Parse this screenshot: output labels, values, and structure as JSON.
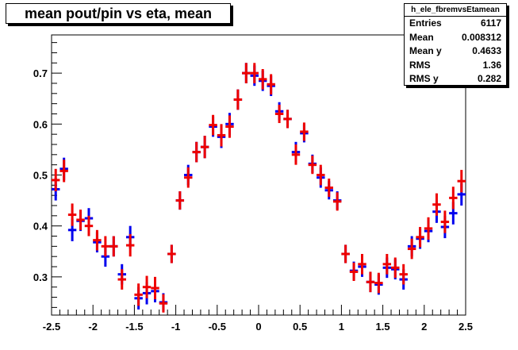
{
  "chart_data": {
    "type": "scatter",
    "title": "mean pout/pin vs eta, mean",
    "xlabel": "",
    "ylabel": "",
    "xlim": [
      -2.5,
      2.5
    ],
    "ylim": [
      0.225,
      0.775
    ],
    "x_ticks": [
      -2.5,
      -2,
      -1.5,
      -1,
      -0.5,
      0,
      0.5,
      1,
      1.5,
      2,
      2.5
    ],
    "x_tick_labels": [
      "-2.5",
      "-2",
      "-1.5",
      "-1",
      "-0.5",
      "0",
      "0.5",
      "1",
      "1.5",
      "2",
      "2.5"
    ],
    "y_ticks": [
      0.3,
      0.4,
      0.5,
      0.6,
      0.7
    ],
    "y_tick_labels": [
      "0.3",
      "0.4",
      "0.5",
      "0.6",
      "0.7"
    ],
    "grid": false,
    "series": [
      {
        "color": "#0000ee",
        "x": [
          -2.45,
          -2.35,
          -2.25,
          -2.15,
          -2.05,
          -1.95,
          -1.85,
          -1.75,
          -1.65,
          -1.55,
          -1.45,
          -1.35,
          -1.25,
          -1.15,
          -1.05,
          -0.95,
          -0.85,
          -0.75,
          -0.65,
          -0.55,
          -0.45,
          -0.35,
          -0.25,
          -0.15,
          -0.05,
          0.05,
          0.15,
          0.25,
          0.35,
          0.45,
          0.55,
          0.65,
          0.75,
          0.85,
          0.95,
          1.05,
          1.15,
          1.25,
          1.35,
          1.45,
          1.55,
          1.65,
          1.75,
          1.85,
          1.95,
          2.05,
          2.15,
          2.25,
          2.35,
          2.45
        ],
        "y": [
          0.472,
          0.512,
          0.392,
          0.41,
          0.415,
          0.368,
          0.34,
          0.36,
          0.305,
          0.378,
          0.258,
          0.268,
          0.272,
          0.25,
          0.345,
          0.45,
          0.5,
          0.545,
          0.555,
          0.595,
          0.575,
          0.6,
          0.648,
          0.7,
          0.695,
          0.685,
          0.675,
          0.625,
          0.61,
          0.545,
          0.582,
          0.522,
          0.495,
          0.47,
          0.45,
          0.345,
          0.312,
          0.32,
          0.29,
          0.285,
          0.318,
          0.315,
          0.295,
          0.36,
          0.375,
          0.39,
          0.428,
          0.398,
          0.425,
          0.462
        ],
        "y_err": [
          0.022,
          0.022,
          0.022,
          0.02,
          0.02,
          0.02,
          0.02,
          0.02,
          0.02,
          0.022,
          0.022,
          0.022,
          0.022,
          0.018,
          0.018,
          0.018,
          0.02,
          0.02,
          0.022,
          0.02,
          0.022,
          0.022,
          0.02,
          0.02,
          0.02,
          0.02,
          0.02,
          0.018,
          0.018,
          0.02,
          0.018,
          0.018,
          0.02,
          0.018,
          0.018,
          0.018,
          0.018,
          0.02,
          0.02,
          0.02,
          0.02,
          0.02,
          0.02,
          0.02,
          0.02,
          0.022,
          0.022,
          0.022,
          0.022,
          0.022
        ]
      },
      {
        "color": "#ee0000",
        "x": [
          -2.45,
          -2.35,
          -2.25,
          -2.15,
          -2.05,
          -1.95,
          -1.85,
          -1.75,
          -1.65,
          -1.55,
          -1.45,
          -1.35,
          -1.25,
          -1.15,
          -1.05,
          -0.95,
          -0.85,
          -0.75,
          -0.65,
          -0.55,
          -0.45,
          -0.35,
          -0.25,
          -0.15,
          -0.05,
          0.05,
          0.15,
          0.25,
          0.35,
          0.45,
          0.55,
          0.65,
          0.75,
          0.85,
          0.95,
          1.05,
          1.15,
          1.25,
          1.35,
          1.45,
          1.55,
          1.65,
          1.75,
          1.85,
          1.95,
          2.05,
          2.15,
          2.25,
          2.35,
          2.45
        ],
        "y": [
          0.49,
          0.508,
          0.422,
          0.412,
          0.4,
          0.372,
          0.36,
          0.36,
          0.295,
          0.362,
          0.265,
          0.28,
          0.278,
          0.248,
          0.345,
          0.45,
          0.495,
          0.545,
          0.555,
          0.598,
          0.578,
          0.595,
          0.648,
          0.7,
          0.7,
          0.688,
          0.678,
          0.62,
          0.61,
          0.54,
          0.585,
          0.52,
          0.5,
          0.475,
          0.448,
          0.345,
          0.31,
          0.325,
          0.29,
          0.288,
          0.325,
          0.318,
          0.305,
          0.355,
          0.378,
          0.395,
          0.442,
          0.408,
          0.455,
          0.488
        ]
      }
    ],
    "stats": {
      "name": "h_ele_fbremvsEtamean",
      "rows": [
        {
          "label": "Entries",
          "value": "6117"
        },
        {
          "label": "Mean",
          "value": "0.008312"
        },
        {
          "label": "Mean y",
          "value": "0.4633"
        },
        {
          "label": "RMS",
          "value": "1.36"
        },
        {
          "label": "RMS y",
          "value": "0.282"
        }
      ]
    }
  }
}
